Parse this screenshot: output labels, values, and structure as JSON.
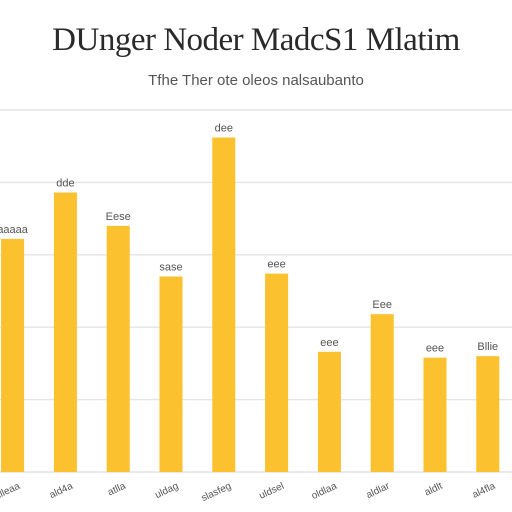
{
  "chart_data": {
    "type": "bar",
    "title": "DUnger Noder MadcS1 Mlatim",
    "subtitle": "Tfhe Ther ote oleos nalsaubanto",
    "categories": [
      "alleaa",
      "ald4a",
      "atlla",
      "uldag",
      "slasfeg",
      "uldsel",
      "oldlaa",
      "aldlar",
      "aldlt",
      "al4fla"
    ],
    "values": [
      80.5,
      96.5,
      85.0,
      67.5,
      115.5,
      68.5,
      41.5,
      54.5,
      39.5,
      40.0
    ],
    "data_labels": [
      "aaaaa",
      "dde",
      "Eese",
      "sase",
      "dee",
      "eee",
      "eee",
      "Eee",
      "eee",
      "Bllie"
    ],
    "ylim": [
      0,
      125
    ],
    "grid": true,
    "bar_color": "#fbc12e",
    "gridline_color": "#e4e4e4",
    "label_color": "#555555"
  }
}
